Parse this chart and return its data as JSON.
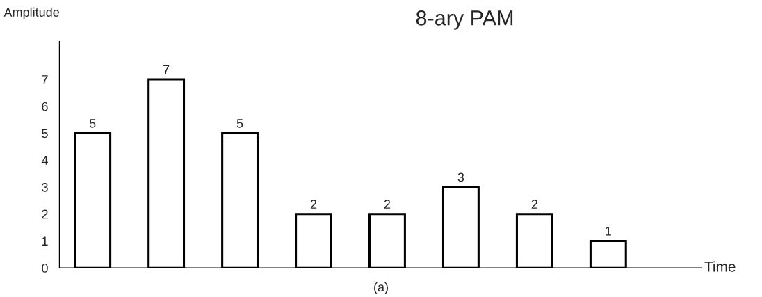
{
  "chart_data": {
    "type": "bar",
    "title": "8-ary PAM",
    "xlabel": "Time",
    "ylabel": "Amplitude",
    "categories": [
      null,
      null,
      null,
      null,
      null,
      null,
      null,
      null
    ],
    "values": [
      5,
      7,
      5,
      2,
      2,
      3,
      2,
      1
    ],
    "color": "#ffffff",
    "ylim": [
      0,
      8.4
    ],
    "yticks": [
      0,
      1,
      2,
      3,
      4,
      5,
      6,
      7
    ],
    "data_labels": true,
    "annotations": [
      "(a)"
    ]
  }
}
